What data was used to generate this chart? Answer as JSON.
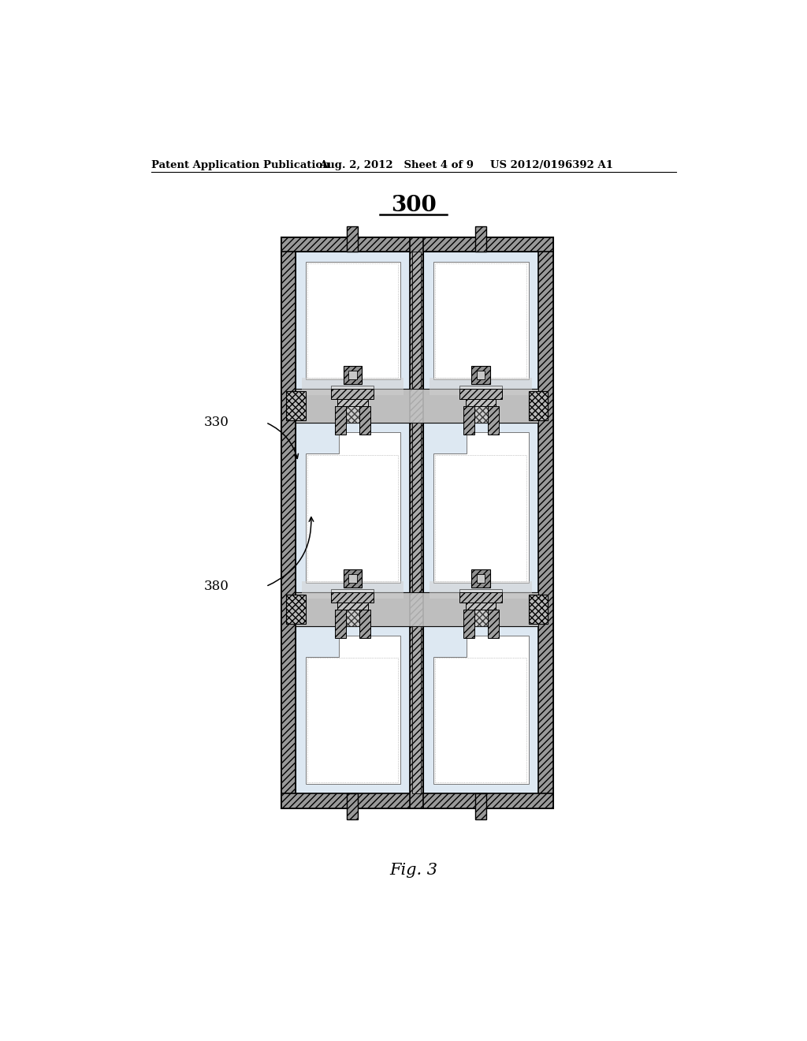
{
  "title": "300",
  "fig_label": "Fig. 3",
  "header_left": "Patent Application Publication",
  "header_mid": "Aug. 2, 2012   Sheet 4 of 9",
  "header_right": "US 2012/0196392 A1",
  "label_330": "330",
  "label_380": "380",
  "bg_color": "#ffffff",
  "frame_hatch_color": "#888888",
  "frame_bg": "#aaaaaa",
  "pixel_light_bg": "#dde8f0",
  "pixel_white": "#ffffff",
  "gate_band_color": "#c0c0c0",
  "tft_dark": "#888888",
  "tft_mid": "#b0b0b0"
}
